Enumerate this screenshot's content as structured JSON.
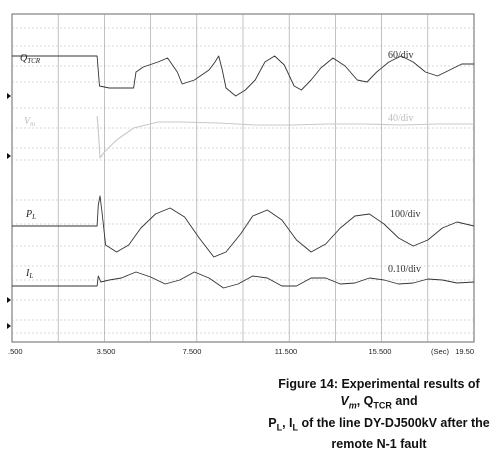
{
  "chart_data": {
    "type": "line",
    "x_unit": "(Sec)",
    "x_ticks": [
      ".500",
      "3.500",
      "7.500",
      "11.500",
      "15.500",
      "19.50"
    ],
    "traces": [
      {
        "label": "Q",
        "label_sub": "TCR",
        "scale": "60/div",
        "color": "#333333",
        "points": [
          [
            0.5,
            56
          ],
          [
            4.0,
            56
          ],
          [
            4.05,
            71
          ],
          [
            4.1,
            86
          ],
          [
            4.5,
            88
          ],
          [
            5.5,
            88
          ],
          [
            5.6,
            72
          ],
          [
            5.9,
            67
          ],
          [
            6.5,
            62
          ],
          [
            6.9,
            58
          ],
          [
            7.3,
            72
          ],
          [
            7.5,
            84
          ],
          [
            8.0,
            80
          ],
          [
            8.6,
            70
          ],
          [
            8.85,
            62
          ],
          [
            9.0,
            56
          ],
          [
            9.15,
            70
          ],
          [
            9.3,
            88
          ],
          [
            9.7,
            96
          ],
          [
            10.1,
            90
          ],
          [
            10.5,
            80
          ],
          [
            10.9,
            62
          ],
          [
            11.3,
            56
          ],
          [
            11.7,
            65
          ],
          [
            12.1,
            86
          ],
          [
            12.4,
            90
          ],
          [
            12.8,
            80
          ],
          [
            13.2,
            68
          ],
          [
            13.7,
            58
          ],
          [
            14.2,
            66
          ],
          [
            14.7,
            80
          ],
          [
            15.1,
            82
          ],
          [
            15.5,
            72
          ],
          [
            16.0,
            62
          ],
          [
            16.5,
            56
          ],
          [
            17.0,
            62
          ],
          [
            17.5,
            72
          ],
          [
            18.0,
            76
          ],
          [
            18.5,
            70
          ],
          [
            19.0,
            64
          ],
          [
            19.5,
            64
          ]
        ]
      },
      {
        "label": "V",
        "label_sub": "m",
        "scale": "40/div",
        "color": "#c8c8c8",
        "points": [
          [
            4.0,
            116
          ],
          [
            4.05,
            130
          ],
          [
            4.12,
            158
          ],
          [
            4.3,
            152
          ],
          [
            4.8,
            140
          ],
          [
            5.5,
            128
          ],
          [
            6.5,
            122
          ],
          [
            7.5,
            122
          ],
          [
            9.0,
            123
          ],
          [
            10.5,
            125
          ],
          [
            12.0,
            125
          ],
          [
            13.5,
            124
          ],
          [
            15.0,
            124
          ],
          [
            16.5,
            125
          ],
          [
            18.0,
            124
          ],
          [
            19.5,
            124
          ]
        ]
      },
      {
        "label": "P",
        "label_sub": "L",
        "scale": "100/div",
        "color": "#333333",
        "points": [
          [
            0.5,
            226
          ],
          [
            4.0,
            226
          ],
          [
            4.05,
            205
          ],
          [
            4.12,
            196
          ],
          [
            4.2,
            212
          ],
          [
            4.35,
            245
          ],
          [
            4.8,
            252
          ],
          [
            5.3,
            245
          ],
          [
            5.8,
            228
          ],
          [
            6.4,
            214
          ],
          [
            7.0,
            208
          ],
          [
            7.6,
            217
          ],
          [
            8.2,
            238
          ],
          [
            8.8,
            257
          ],
          [
            9.3,
            252
          ],
          [
            9.9,
            234
          ],
          [
            10.4,
            216
          ],
          [
            11.0,
            210
          ],
          [
            11.6,
            220
          ],
          [
            12.2,
            240
          ],
          [
            12.8,
            252
          ],
          [
            13.4,
            244
          ],
          [
            14.0,
            228
          ],
          [
            14.6,
            216
          ],
          [
            15.2,
            214
          ],
          [
            15.8,
            224
          ],
          [
            16.4,
            238
          ],
          [
            17.0,
            246
          ],
          [
            17.6,
            240
          ],
          [
            18.2,
            228
          ],
          [
            18.8,
            222
          ],
          [
            19.5,
            226
          ]
        ]
      },
      {
        "label": "I",
        "label_sub": "L",
        "scale": "0.10/div",
        "color": "#333333",
        "points": [
          [
            0.5,
            286
          ],
          [
            4.0,
            286
          ],
          [
            4.05,
            276
          ],
          [
            4.15,
            282
          ],
          [
            4.5,
            280
          ],
          [
            5.0,
            278
          ],
          [
            5.6,
            272
          ],
          [
            6.2,
            277
          ],
          [
            6.8,
            284
          ],
          [
            7.4,
            280
          ],
          [
            8.0,
            272
          ],
          [
            8.6,
            278
          ],
          [
            9.2,
            288
          ],
          [
            9.8,
            284
          ],
          [
            10.4,
            276
          ],
          [
            11.0,
            278
          ],
          [
            11.6,
            286
          ],
          [
            12.2,
            286
          ],
          [
            12.8,
            278
          ],
          [
            13.4,
            278
          ],
          [
            14.0,
            284
          ],
          [
            14.6,
            283
          ],
          [
            15.2,
            278
          ],
          [
            15.8,
            280
          ],
          [
            16.4,
            284
          ],
          [
            17.0,
            283
          ],
          [
            17.6,
            279
          ],
          [
            18.2,
            280
          ],
          [
            18.8,
            283
          ],
          [
            19.5,
            282
          ]
        ]
      }
    ]
  },
  "caption": {
    "prefix": "Figure 14: Experimental results of ",
    "vm_base": "V",
    "vm_sub": "m",
    "sep1": ", Q",
    "q_sub": "TCR",
    "and": " and",
    "pl_base": "P",
    "pl_sub": "L",
    "sep2": ", I",
    "il_sub": "L",
    "suffix": " of the line DY-DJ500kV after the remote N-1 fault"
  }
}
